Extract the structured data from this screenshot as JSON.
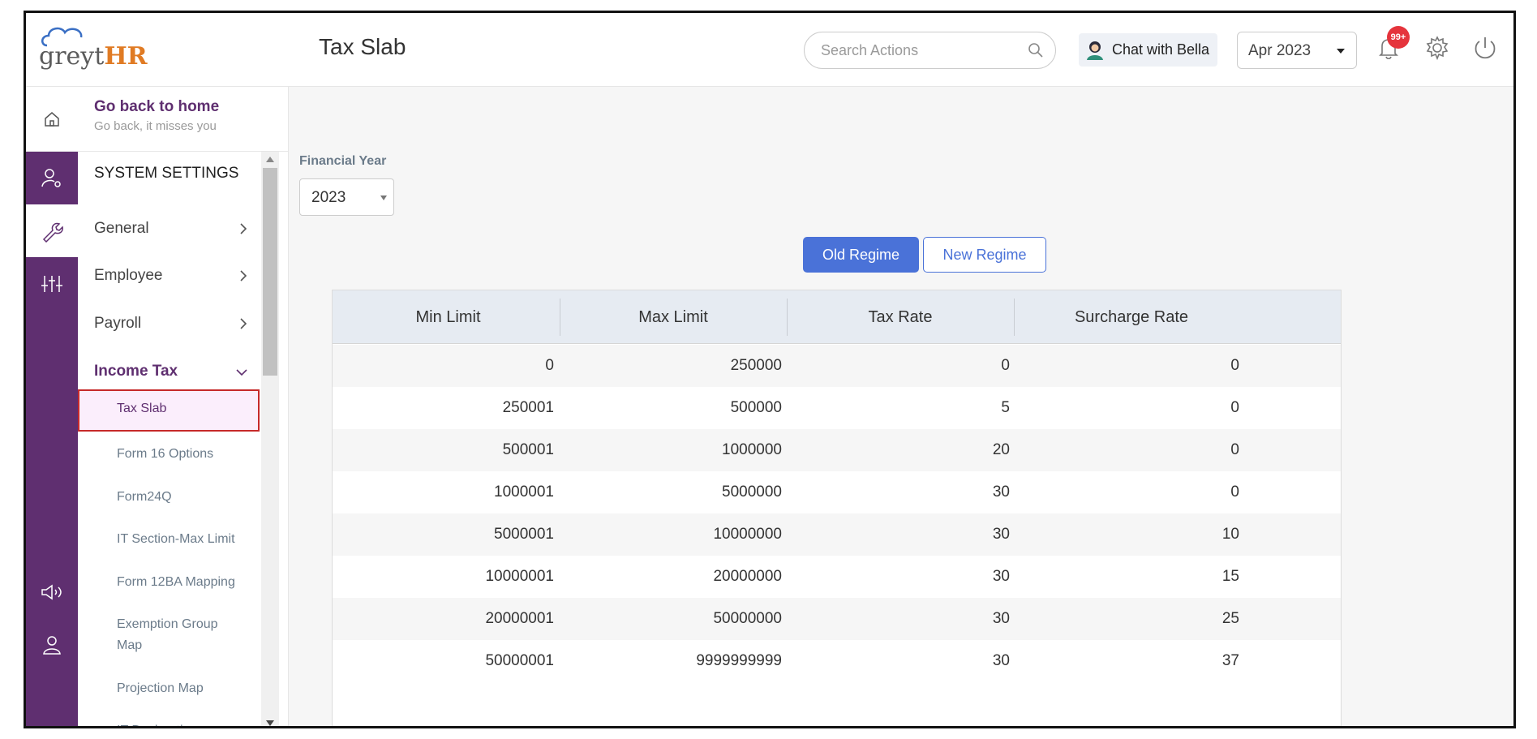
{
  "app": {
    "logo_text_grey": "greyt",
    "logo_text_hr": "HR",
    "page_title": "Tax Slab"
  },
  "header": {
    "search_placeholder": "Search Actions",
    "chat_label": "Chat with Bella",
    "month_value": "Apr 2023",
    "notification_badge": "99+"
  },
  "sidebar": {
    "home_title": "Go back to home",
    "home_subtitle": "Go back, it misses you",
    "section_title": "SYSTEM SETTINGS",
    "menu": [
      {
        "label": "General"
      },
      {
        "label": "Employee"
      },
      {
        "label": "Payroll"
      },
      {
        "label": "Income Tax"
      }
    ],
    "active_sub": "Tax Slab",
    "sub_items": [
      {
        "label": "Form 16 Options"
      },
      {
        "label": "Form24Q"
      },
      {
        "label": "IT Section-Max Limit"
      },
      {
        "label": "Form 12BA Mapping"
      },
      {
        "label": "Exemption Group Map"
      },
      {
        "label": "Projection Map"
      },
      {
        "label": "IT Declaration"
      }
    ]
  },
  "main": {
    "fy_label": "Financial Year",
    "fy_value": "2023",
    "regime_old": "Old Regime",
    "regime_new": "New Regime",
    "columns": [
      "Min Limit",
      "Max Limit",
      "Tax Rate",
      "Surcharge Rate"
    ],
    "rows": [
      [
        "0",
        "250000",
        "0",
        "0"
      ],
      [
        "250001",
        "500000",
        "5",
        "0"
      ],
      [
        "500001",
        "1000000",
        "20",
        "0"
      ],
      [
        "1000001",
        "5000000",
        "30",
        "0"
      ],
      [
        "5000001",
        "10000000",
        "30",
        "10"
      ],
      [
        "10000001",
        "20000000",
        "30",
        "15"
      ],
      [
        "20000001",
        "50000000",
        "30",
        "25"
      ],
      [
        "50000001",
        "9999999999",
        "30",
        "37"
      ]
    ]
  },
  "colors": {
    "brand_purple": "#5f2f70",
    "accent_blue": "#4a72d8",
    "badge_red": "#e5343c"
  }
}
